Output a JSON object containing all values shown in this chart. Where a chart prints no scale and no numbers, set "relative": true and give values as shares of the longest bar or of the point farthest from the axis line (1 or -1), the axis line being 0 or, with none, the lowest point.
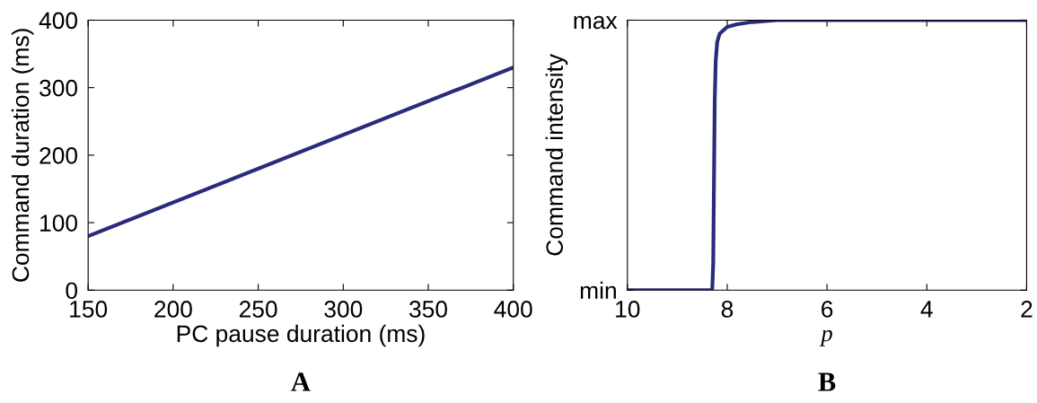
{
  "chart_data": [
    {
      "type": "line",
      "xlabel": "PC pause duration (ms)",
      "ylabel": "Command duration (ms)",
      "annotations": [
        "A"
      ],
      "x": [
        150,
        400
      ],
      "series": [
        {
          "color": "#2b2b7c",
          "values": [
            80,
            330
          ]
        }
      ],
      "xlim": [
        150,
        400
      ],
      "xticks": [
        150,
        200,
        250,
        300,
        350,
        400
      ],
      "ylim": [
        0,
        400
      ],
      "yticks": [
        0,
        100,
        200,
        300,
        400
      ],
      "grid": false,
      "legend": false
    },
    {
      "type": "line",
      "xlabel": "p",
      "ylabel": "Command intensity",
      "relative": true,
      "annotations": [
        "B",
        "min",
        "max"
      ],
      "x": [
        10,
        8.3,
        8.28,
        8.27,
        8.26,
        8.25,
        8.23,
        8.2,
        8.15,
        8.0,
        7.8,
        7.5,
        7.0,
        2
      ],
      "series": [
        {
          "color": "#2b2b7c",
          "values": [
            0,
            0,
            0.1,
            0.3,
            0.5,
            0.7,
            0.85,
            0.92,
            0.95,
            0.975,
            0.985,
            0.993,
            1,
            1
          ]
        }
      ],
      "xlim": [
        10,
        2
      ],
      "xticks": [
        10,
        8,
        6,
        4,
        2
      ],
      "grid": false,
      "legend": false
    }
  ]
}
